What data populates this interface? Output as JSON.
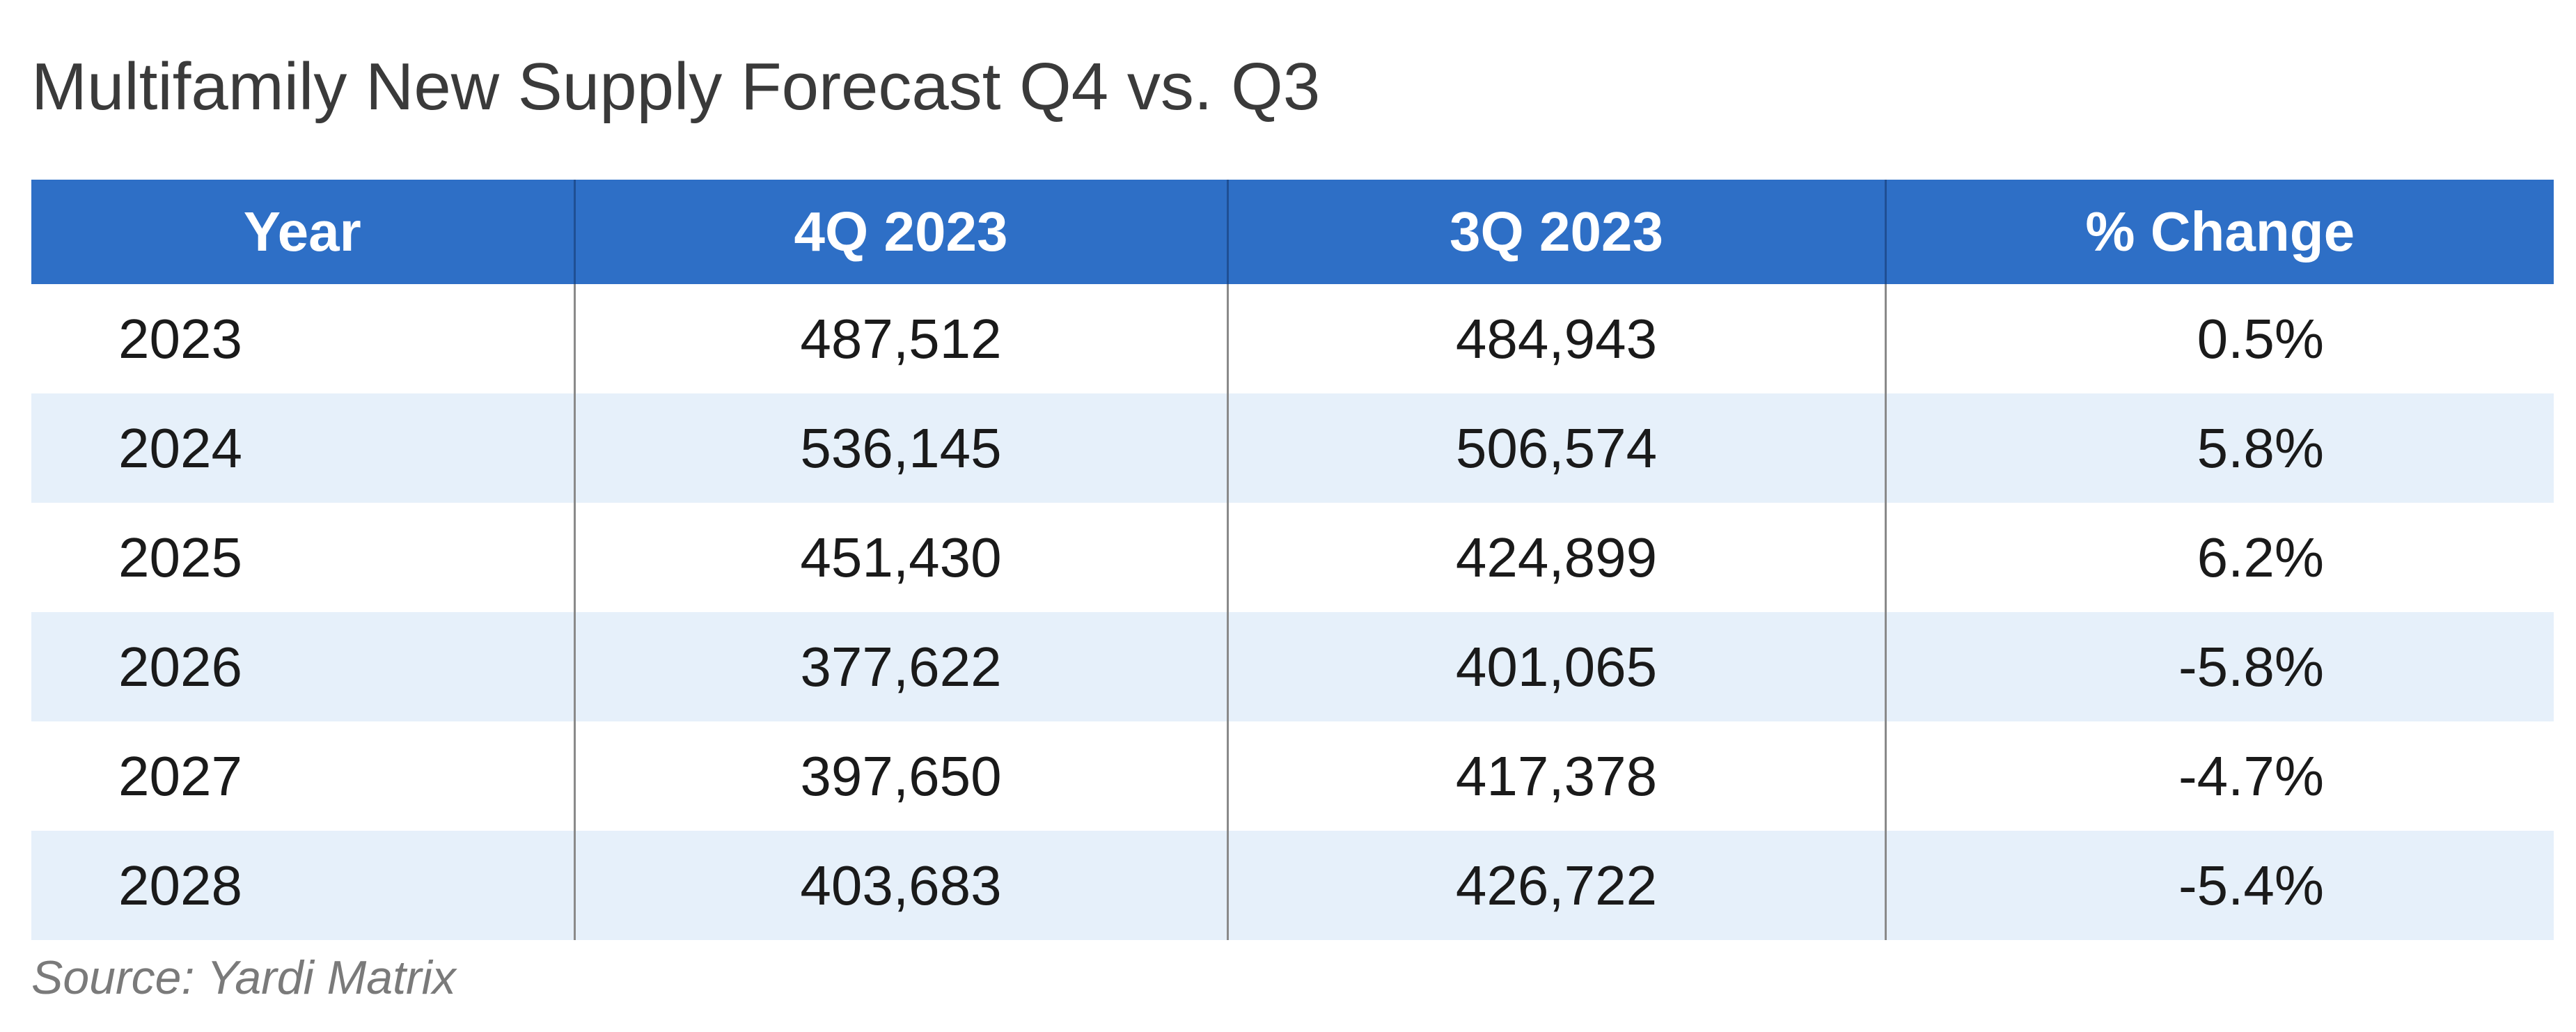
{
  "title": "Multifamily New Supply Forecast Q4 vs. Q3",
  "source": "Source: Yardi Matrix",
  "chart_data": {
    "type": "table",
    "title": "Multifamily New Supply Forecast Q4 vs. Q3",
    "columns": [
      "Year",
      "4Q 2023",
      "3Q 2023",
      "% Change"
    ],
    "rows": [
      [
        "2023",
        "487,512",
        "484,943",
        "0.5%"
      ],
      [
        "2024",
        "536,145",
        "506,574",
        "5.8%"
      ],
      [
        "2025",
        "451,430",
        "424,899",
        "6.2%"
      ],
      [
        "2026",
        "377,622",
        "401,065",
        "-5.8%"
      ],
      [
        "2027",
        "397,650",
        "417,378",
        "-4.7%"
      ],
      [
        "2028",
        "403,683",
        "426,722",
        "-5.4%"
      ]
    ],
    "colors": {
      "header_background": "#2e6fc6",
      "header_text": "#ffffff",
      "alt_row_background": "#e6f0fa"
    }
  }
}
